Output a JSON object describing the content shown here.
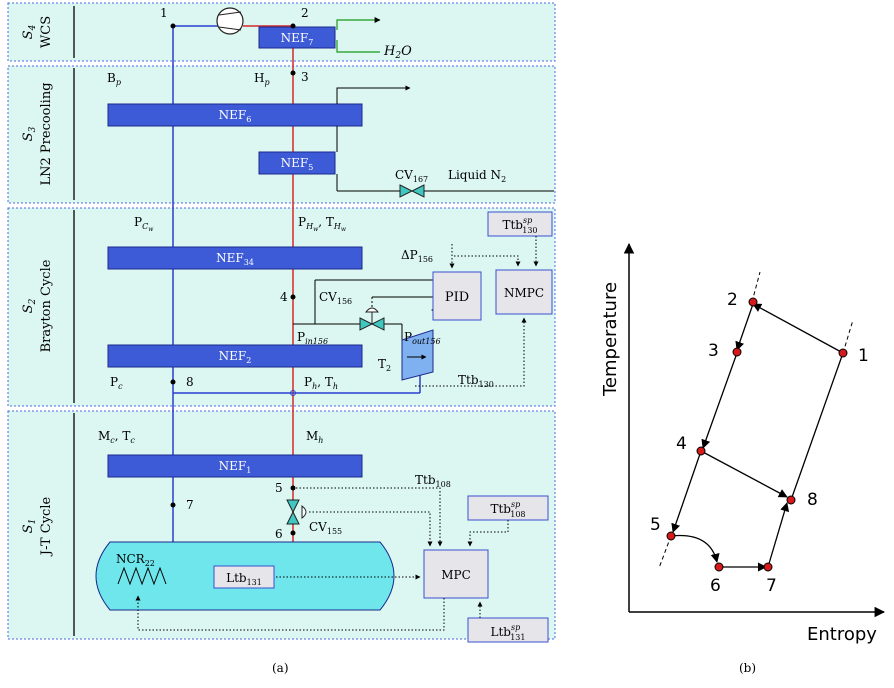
{
  "sections": {
    "s4": {
      "id": "S",
      "sub": "4",
      "name": "WCS"
    },
    "s3": {
      "id": "S",
      "sub": "3",
      "name": "LN2 Precooling"
    },
    "s2": {
      "id": "S",
      "sub": "2",
      "name": "Brayton Cycle"
    },
    "s1": {
      "id": "S",
      "sub": "1",
      "name": "J-T Cycle"
    }
  },
  "nef": {
    "nef7": {
      "base": "NEF",
      "sub": "7"
    },
    "nef6": {
      "base": "NEF",
      "sub": "6"
    },
    "nef5": {
      "base": "NEF",
      "sub": "5"
    },
    "nef34": {
      "base": "NEF",
      "sub": "34"
    },
    "nef2": {
      "base": "NEF",
      "sub": "2"
    },
    "nef1": {
      "base": "NEF",
      "sub": "1"
    }
  },
  "labels": {
    "h2o": {
      "base": "H",
      "sub": "2",
      "tail": "O"
    },
    "bp": {
      "base": "B",
      "sub": "p"
    },
    "hp": {
      "base": "H",
      "sub": "p"
    },
    "cv167": {
      "base": "CV",
      "sub": "167"
    },
    "liquid_n2": {
      "base": "Liquid N",
      "sub": "2"
    },
    "pcw": {
      "base": "P",
      "sub": "C",
      "subsub": "w"
    },
    "phw": {
      "base": "P",
      "sub": "H",
      "subsub": "w",
      "sep": ", ",
      "base2": "T",
      "sub2": "H",
      "subsub2": "w"
    },
    "ttb130sp": {
      "base": "Ttb",
      "sup": "sp",
      "sub": "130"
    },
    "dp156": {
      "base": "ΔP",
      "sub": "156"
    },
    "cv156": {
      "base": "CV",
      "sub": "156"
    },
    "pid": "PID",
    "nmpc": "NMPC",
    "pin156": {
      "base": "P",
      "sub": "in156"
    },
    "pout156": {
      "base": "P",
      "sub": "out156"
    },
    "t2": {
      "base": "T",
      "sub": "2"
    },
    "pc": {
      "base": "P",
      "sub": "c"
    },
    "ph_th": {
      "base": "P",
      "sub": "h",
      "sep": ", T",
      "sub2": "h"
    },
    "ttb130": {
      "base": "Ttb",
      "sub": "130"
    },
    "mc_tc": {
      "base": "M",
      "sub": "c",
      "sep": ", T",
      "sub2": "c"
    },
    "mh": {
      "base": "M",
      "sub": "h"
    },
    "ttb108": {
      "base": "Ttb",
      "sub": "108"
    },
    "ttb108sp": {
      "base": "Ttb",
      "sup": "sp",
      "sub": "108"
    },
    "cv155": {
      "base": "CV",
      "sub": "155"
    },
    "ncr22": {
      "base": "NCR",
      "sub": "22"
    },
    "ltb131": {
      "base": "Ltb",
      "sub": "131"
    },
    "mpc": "MPC",
    "ltb131sp": {
      "base": "Ltb",
      "sup": "sp",
      "sub": "131"
    }
  },
  "point_numbers": [
    "1",
    "2",
    "3",
    "4",
    "5",
    "6",
    "7",
    "8"
  ],
  "ts_diagram": {
    "ylabel": "Temperature",
    "xlabel": "Entropy",
    "points": [
      "1",
      "2",
      "3",
      "4",
      "5",
      "6",
      "7",
      "8"
    ]
  },
  "captions": {
    "a": "(a)",
    "b": "(b)"
  },
  "colors": {
    "section_fill": "#dcf7f1",
    "section_border": "#4a6be0",
    "nef_fill": "#3d5bd6",
    "nef_border": "#1a2a8c",
    "hot_line": "#d42a2a",
    "cold_line": "#2a3fcf",
    "valve_fill": "#3fc7c0",
    "tank_fill": "#6ee6ec",
    "controller_fill": "#e6e6ea",
    "turbine_fill": "#7fb0f0",
    "point_red": "#d41a1a",
    "h2o_line": "#1a9a1a"
  }
}
